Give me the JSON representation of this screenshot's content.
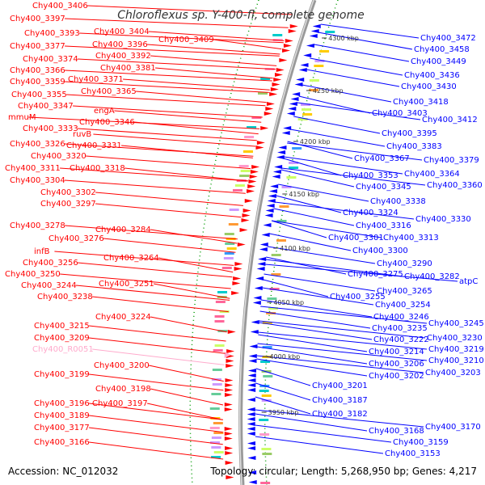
{
  "title": "Chloroflexus sp. Y-400-fl, complete genome",
  "accession": "Accession: NC_012032",
  "topology": "Topology: circular; Length: 5,268,950 bp; Genes: 4,217",
  "colors": {
    "forward": "#ff0000",
    "reverse": "#0000ff",
    "rna": "#ffaacc",
    "tick": "#009900"
  },
  "ticks": [
    "4300 kbp",
    "4250 kbp",
    "4200 kbp",
    "4150 kbp",
    "4100 kbp",
    "4050 kbp",
    "4000 kbp",
    "3950 kbp"
  ],
  "left_labels": [
    "Chy400_3406",
    "Chy400_3397",
    "Chy400_3404",
    "Chy400_3409",
    "Chy400_3393",
    "Chy400_3396",
    "Chy400_3377",
    "Chy400_3392",
    "Chy400_3374",
    "Chy400_3381",
    "Chy400_3366",
    "Chy400_3371",
    "Chy400_3359",
    "Chy400_3365",
    "Chy400_3355",
    "Chy400_3347",
    "engA",
    "mmuM",
    "Chy400_3346",
    "Chy400_3333",
    "ruvB",
    "Chy400_3326",
    "Chy400_3331",
    "Chy400_3320",
    "Chy400_3311",
    "Chy400_3318",
    "Chy400_3304",
    "Chy400_3302",
    "Chy400_3297",
    "Chy400_3278",
    "Chy400_3284",
    "Chy400_3276",
    "infB",
    "Chy400_3264",
    "Chy400_3256",
    "Chy400_3250",
    "Chy400_3251",
    "Chy400_3244",
    "Chy400_3238",
    "Chy400_3224",
    "Chy400_3215",
    "Chy400_3209",
    "Chy400_R0051",
    "Chy400_3200",
    "Chy400_3199",
    "Chy400_3198",
    "Chy400_3196",
    "Chy400_3197",
    "Chy400_3189",
    "Chy400_3177",
    "Chy400_3166"
  ],
  "right_labels": [
    "Chy400_3472",
    "Chy400_3458",
    "Chy400_3449",
    "Chy400_3436",
    "Chy400_3430",
    "Chy400_3418",
    "Chy400_3403",
    "Chy400_3412",
    "Chy400_3395",
    "Chy400_3383",
    "Chy400_3367",
    "Chy400_3379",
    "Chy400_3353",
    "Chy400_3364",
    "Chy400_3345",
    "Chy400_3360",
    "Chy400_3338",
    "Chy400_3324",
    "Chy400_3330",
    "Chy400_3316",
    "Chy400_3301",
    "Chy400_3313",
    "Chy400_3300",
    "Chy400_3290",
    "Chy400_3275",
    "Chy400_3282",
    "atpC",
    "Chy400_3265",
    "Chy400_3255",
    "Chy400_3254",
    "Chy400_3246",
    "Chy400_3245",
    "Chy400_3235",
    "Chy400_3230",
    "Chy400_3222",
    "Chy400_3219",
    "Chy400_3214",
    "Chy400_3210",
    "Chy400_3206",
    "Chy400_3203",
    "Chy400_3202",
    "Chy400_3201",
    "Chy400_3187",
    "Chy400_3182",
    "Chy400_3168",
    "Chy400_3170",
    "Chy400_3159",
    "Chy400_3153"
  ]
}
